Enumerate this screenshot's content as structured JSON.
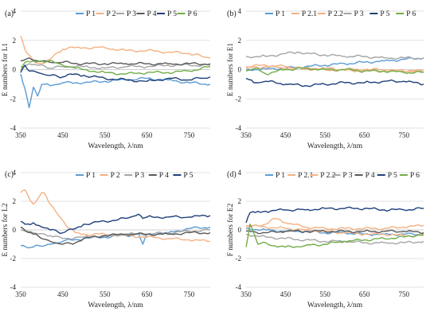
{
  "colors": {
    "P1": "#5b9bd5",
    "P2": "#f4b183",
    "P2_1": "#f4b183",
    "P2_2": "#f4b183",
    "P3": "#a5a5a5",
    "P4": "#595959",
    "P5": "#1f3f7a",
    "P6": "#70ad47",
    "grid": "#d9d9d9",
    "zero": "#bfbfbf"
  },
  "chart_data": [
    {
      "panel": "(a)",
      "type": "line",
      "xlabel": "Wavelength, λ/nm",
      "ylabel": "E numbers for L1",
      "xlim": [
        350,
        800
      ],
      "ylim": [
        -4,
        4
      ],
      "xticks": [
        "350",
        "450",
        "550",
        "650",
        "750"
      ],
      "yticks": [
        "4",
        "2",
        "0",
        "-2",
        "-4"
      ],
      "legend_position": "top",
      "series": [
        {
          "name": "P 1",
          "color_key": "P1",
          "x": [
            350,
            360,
            370,
            380,
            390,
            400,
            420,
            450,
            480,
            500,
            550,
            600,
            650,
            700,
            750,
            800
          ],
          "values": [
            -0.3,
            -1.3,
            -2.6,
            -1.2,
            -1.8,
            -1.0,
            -1.1,
            -0.9,
            -0.9,
            -0.9,
            -0.8,
            -0.7,
            -0.6,
            -0.7,
            -0.9,
            -1.0
          ]
        },
        {
          "name": "P 2",
          "color_key": "P2",
          "x": [
            350,
            360,
            370,
            380,
            400,
            420,
            450,
            480,
            500,
            550,
            600,
            650,
            700,
            750,
            780,
            800
          ],
          "values": [
            2.3,
            1.4,
            1.0,
            0.6,
            0.4,
            0.7,
            1.4,
            1.5,
            1.5,
            1.5,
            1.3,
            1.3,
            1.2,
            1.1,
            0.9,
            0.8
          ]
        },
        {
          "name": "P 3",
          "color_key": "P3",
          "x": [
            350,
            370,
            390,
            420,
            450,
            480,
            500,
            550,
            600,
            650,
            700,
            750,
            800
          ],
          "values": [
            0.2,
            0.4,
            0.3,
            0.1,
            0.2,
            0.2,
            0.2,
            0.1,
            0.2,
            0.2,
            0.3,
            0.3,
            0.3
          ]
        },
        {
          "name": "P 4",
          "color_key": "P4",
          "x": [
            350,
            370,
            390,
            420,
            450,
            500,
            550,
            600,
            650,
            700,
            750,
            800
          ],
          "values": [
            0.6,
            0.8,
            0.6,
            0.5,
            0.5,
            0.4,
            0.4,
            0.4,
            0.4,
            0.4,
            0.4,
            0.4
          ]
        },
        {
          "name": "P 5",
          "color_key": "P5",
          "x": [
            350,
            360,
            370,
            390,
            420,
            450,
            480,
            500,
            550,
            600,
            650,
            700,
            750,
            780,
            800
          ],
          "values": [
            -0.2,
            0.3,
            -0.1,
            -0.2,
            -0.4,
            -0.5,
            -0.3,
            -0.4,
            -0.6,
            -0.7,
            -0.8,
            -0.6,
            -0.7,
            -0.6,
            -0.5
          ]
        },
        {
          "name": "P 6",
          "color_key": "P6",
          "x": [
            350,
            360,
            380,
            400,
            430,
            450,
            480,
            500,
            550,
            600,
            650,
            700,
            750,
            800
          ],
          "values": [
            -0.1,
            0.5,
            0.6,
            0.6,
            0.5,
            0.3,
            0.1,
            0.0,
            -0.2,
            -0.3,
            -0.2,
            -0.2,
            -0.1,
            0.2
          ]
        }
      ]
    },
    {
      "panel": "(b)",
      "type": "line",
      "xlabel": "Wavelength, λ/nm",
      "ylabel": "E numbers for E1",
      "xlim": [
        350,
        800
      ],
      "ylim": [
        -4,
        4
      ],
      "xticks": [
        "350",
        "450",
        "550",
        "650",
        "750"
      ],
      "yticks": [
        "4",
        "2",
        "0",
        "-2",
        "-4"
      ],
      "legend_position": "top",
      "series": [
        {
          "name": "P 1",
          "color_key": "P1",
          "x": [
            350,
            400,
            450,
            500,
            550,
            600,
            650,
            700,
            750,
            800
          ],
          "values": [
            0.0,
            0.05,
            0.1,
            0.2,
            0.3,
            0.4,
            0.5,
            0.6,
            0.7,
            0.8
          ]
        },
        {
          "name": "P 2.1",
          "color_key": "P2_1",
          "x": [
            350,
            400,
            450,
            500,
            550,
            600,
            650,
            700,
            750,
            800
          ],
          "values": [
            0.1,
            0.2,
            0.1,
            0.05,
            0.0,
            -0.05,
            -0.05,
            -0.1,
            -0.1,
            -0.1
          ]
        },
        {
          "name": "P 2.2",
          "color_key": "P2_2",
          "x": [
            350,
            400,
            450,
            500,
            550,
            600,
            650,
            700,
            750,
            800
          ],
          "values": [
            0.2,
            0.3,
            0.2,
            0.1,
            0.1,
            0.0,
            0.0,
            0.0,
            -0.1,
            -0.1
          ]
        },
        {
          "name": "P 3",
          "color_key": "P3",
          "x": [
            350,
            400,
            450,
            480,
            500,
            550,
            600,
            650,
            700,
            750,
            800
          ],
          "values": [
            0.9,
            0.9,
            1.1,
            1.2,
            1.1,
            1.0,
            0.9,
            0.9,
            0.8,
            0.8,
            0.8
          ]
        },
        {
          "name": "P 5",
          "color_key": "P5",
          "x": [
            350,
            370,
            400,
            450,
            500,
            550,
            600,
            650,
            700,
            750,
            800
          ],
          "values": [
            -0.6,
            -0.9,
            -0.8,
            -1.0,
            -1.1,
            -1.0,
            -0.9,
            -0.9,
            -0.8,
            -0.8,
            -1.0
          ]
        },
        {
          "name": "P 6",
          "color_key": "P6",
          "x": [
            350,
            380,
            400,
            450,
            500,
            550,
            600,
            650,
            700,
            750,
            800
          ],
          "values": [
            -0.1,
            0.1,
            -0.3,
            0.0,
            0.1,
            0.0,
            0.0,
            -0.1,
            -0.1,
            -0.2,
            -0.2
          ]
        }
      ]
    },
    {
      "panel": "(c)",
      "type": "line",
      "xlabel": "Wavelength, λ/nm",
      "ylabel": "E numbers for L2",
      "xlim": [
        350,
        800
      ],
      "ylim": [
        -4,
        4
      ],
      "xticks": [
        "350",
        "450",
        "550",
        "650",
        "750"
      ],
      "yticks": [
        "4",
        "2",
        "0",
        "-2",
        "-4"
      ],
      "legend_position": "top",
      "series": [
        {
          "name": "P 1",
          "color_key": "P1",
          "x": [
            350,
            380,
            420,
            450,
            500,
            550,
            600,
            630,
            640,
            650,
            700,
            750,
            800
          ],
          "values": [
            -1.1,
            -1.2,
            -1.0,
            -0.8,
            -0.6,
            -0.5,
            -0.4,
            -0.3,
            -1.0,
            -0.3,
            -0.2,
            0.1,
            0.2
          ]
        },
        {
          "name": "P 2",
          "color_key": "P2",
          "x": [
            350,
            360,
            380,
            400,
            410,
            420,
            440,
            460,
            480,
            500,
            550,
            600,
            650,
            700,
            750,
            800
          ],
          "values": [
            2.6,
            2.8,
            1.8,
            2.6,
            2.4,
            1.8,
            1.0,
            0.2,
            -0.2,
            -0.3,
            -0.3,
            -0.4,
            -0.5,
            -0.6,
            -0.7,
            -0.8
          ]
        },
        {
          "name": "P 3",
          "color_key": "P3",
          "x": [
            350,
            380,
            420,
            450,
            500,
            550,
            600,
            650,
            700,
            750,
            800
          ],
          "values": [
            0.0,
            -0.2,
            -0.4,
            -0.6,
            -0.5,
            -0.4,
            -0.3,
            -0.3,
            -0.2,
            -0.1,
            0.0
          ]
        },
        {
          "name": "P 4",
          "color_key": "P4",
          "x": [
            350,
            380,
            420,
            450,
            480,
            500,
            550,
            600,
            650,
            700,
            750,
            800
          ],
          "values": [
            0.2,
            -0.3,
            -0.8,
            -1.0,
            -0.9,
            -0.6,
            -0.4,
            -0.3,
            -0.3,
            -0.3,
            -0.2,
            -0.2
          ]
        },
        {
          "name": "P 5",
          "color_key": "P5",
          "x": [
            350,
            360,
            380,
            400,
            420,
            450,
            480,
            500,
            550,
            600,
            630,
            640,
            650,
            700,
            750,
            800
          ],
          "values": [
            0.6,
            0.4,
            0.5,
            0.2,
            0.0,
            -0.2,
            0.1,
            0.4,
            0.6,
            0.8,
            1.1,
            0.8,
            0.9,
            0.9,
            0.9,
            1.0
          ]
        }
      ]
    },
    {
      "panel": "(d)",
      "type": "line",
      "xlabel": "Wavelength, λ/nm",
      "ylabel": "F numbers for E2",
      "xlim": [
        350,
        800
      ],
      "ylim": [
        -4,
        4
      ],
      "xticks": [
        "350",
        "450",
        "550",
        "650",
        "750"
      ],
      "yticks": [
        "4",
        "2",
        "0",
        "-2",
        "-4"
      ],
      "legend_position": "top",
      "series": [
        {
          "name": "P 1",
          "color_key": "P1",
          "x": [
            350,
            400,
            450,
            500,
            550,
            600,
            650,
            700,
            750,
            800
          ],
          "values": [
            0.1,
            0.0,
            -0.1,
            -0.1,
            -0.2,
            -0.2,
            -0.3,
            -0.3,
            -0.3,
            -0.3
          ]
        },
        {
          "name": "P 2.1",
          "color_key": "P2_1",
          "x": [
            350,
            400,
            420,
            450,
            500,
            550,
            600,
            650,
            700,
            750,
            800
          ],
          "values": [
            0.2,
            0.4,
            0.8,
            0.5,
            0.2,
            0.1,
            0.1,
            0.1,
            0.1,
            0.2,
            0.3
          ]
        },
        {
          "name": "P 2.2",
          "color_key": "P2_2",
          "x": [
            350,
            400,
            450,
            500,
            550,
            600,
            650,
            700,
            750,
            800
          ],
          "values": [
            0.3,
            0.2,
            0.1,
            0.0,
            -0.1,
            -0.2,
            -0.3,
            -0.3,
            -0.4,
            -0.4
          ]
        },
        {
          "name": "P 3",
          "color_key": "P3",
          "x": [
            350,
            400,
            450,
            500,
            550,
            600,
            650,
            700,
            750,
            800
          ],
          "values": [
            -0.3,
            -0.5,
            -0.6,
            -0.7,
            -0.8,
            -0.8,
            -0.9,
            -0.9,
            -0.9,
            -0.8
          ]
        },
        {
          "name": "P 4",
          "color_key": "P4",
          "x": [
            350,
            400,
            450,
            500,
            550,
            600,
            650,
            700,
            750,
            800
          ],
          "values": [
            -0.1,
            -0.2,
            -0.1,
            -0.1,
            -0.1,
            -0.1,
            -0.1,
            -0.1,
            -0.1,
            -0.2
          ]
        },
        {
          "name": "P 5",
          "color_key": "P5",
          "x": [
            350,
            360,
            380,
            400,
            450,
            500,
            550,
            600,
            650,
            700,
            750,
            800
          ],
          "values": [
            0.5,
            1.2,
            1.3,
            1.3,
            1.4,
            1.4,
            1.5,
            1.5,
            1.5,
            1.4,
            1.4,
            1.5
          ]
        },
        {
          "name": "P 6",
          "color_key": "P6",
          "x": [
            350,
            360,
            380,
            400,
            430,
            450,
            500,
            550,
            600,
            650,
            700,
            750,
            800
          ],
          "values": [
            -1.2,
            0.4,
            -1.0,
            -0.9,
            -1.2,
            -1.2,
            -1.1,
            -1.0,
            -0.8,
            -0.7,
            -0.6,
            -0.5,
            -0.3
          ]
        }
      ]
    }
  ]
}
